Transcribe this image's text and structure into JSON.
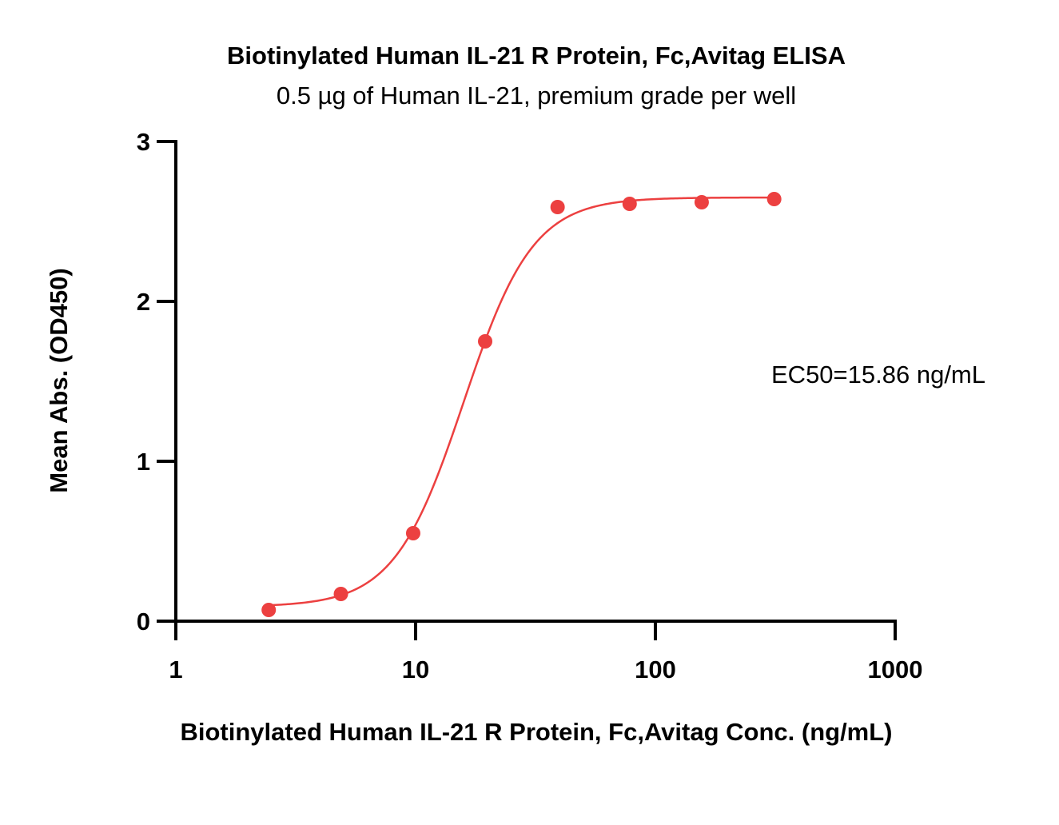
{
  "chart_data": {
    "type": "scatter",
    "title": "Biotinylated Human IL-21 R Protein, Fc,Avitag ELISA",
    "subtitle": "0.5 µg of Human IL-21, premium grade per well",
    "xlabel": "Biotinylated Human IL-21 R Protein, Fc,Avitag Conc. (ng/mL)",
    "ylabel": "Mean Abs. (OD450)",
    "x_scale": "log",
    "xlim": [
      1,
      1000
    ],
    "ylim": [
      0,
      3
    ],
    "x_ticks": [
      "1",
      "10",
      "100",
      "1000"
    ],
    "y_ticks": [
      "0",
      "1",
      "2",
      "3"
    ],
    "grid": false,
    "legend": "none",
    "color": "#ec4040",
    "series": [
      {
        "x": [
          2.44,
          4.88,
          9.77,
          19.5,
          39.1,
          78.1,
          156,
          313
        ],
        "y": [
          0.07,
          0.17,
          0.55,
          1.75,
          2.59,
          2.61,
          2.62,
          2.64
        ]
      }
    ],
    "fit": {
      "model": "4PL",
      "bottom": 0.09,
      "top": 2.65,
      "ec50": 15.86,
      "hill": 3.0
    },
    "annotation": "EC50=15.86 ng/mL"
  }
}
